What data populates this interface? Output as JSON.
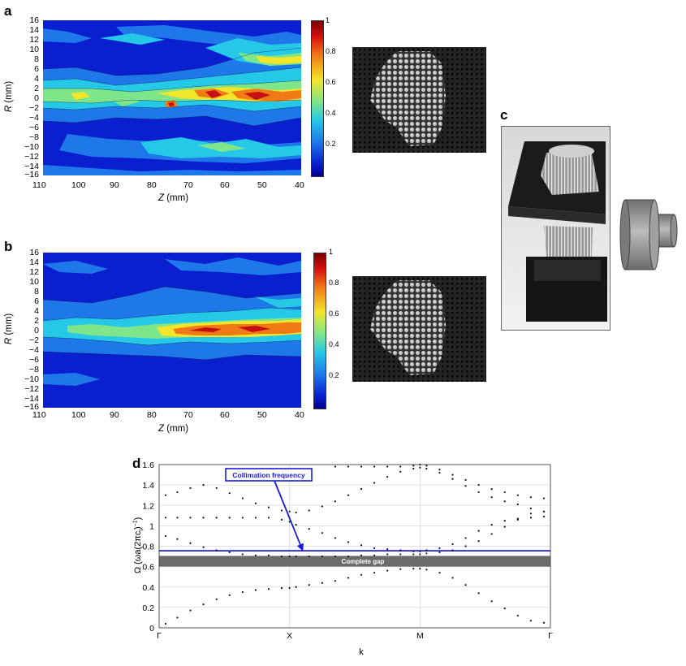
{
  "panels": {
    "a": {
      "letter": "a"
    },
    "b": {
      "letter": "b"
    },
    "c": {
      "letter": "c"
    },
    "d": {
      "letter": "d"
    }
  },
  "contour": {
    "y_ticks": [
      "16",
      "14",
      "12",
      "10",
      "8",
      "6",
      "4",
      "2",
      "0",
      "−2",
      "−4",
      "−6",
      "−8",
      "−10",
      "−12",
      "−14",
      "−16"
    ],
    "x_ticks": [
      "110",
      "100",
      "90",
      "80",
      "70",
      "60",
      "50",
      "40"
    ],
    "ylabel_var": "R",
    "ylabel_unit": " (mm)",
    "xlabel_var": "Z",
    "xlabel_unit": " (mm)",
    "colorbar_ticks": [
      "1",
      "0.8",
      "0.6",
      "0.4",
      "0.2"
    ]
  },
  "colors": {
    "low": "#0a1fd0",
    "mid_low": "#1e78ea",
    "mid": "#25c8e6",
    "mid_high": "#7ee58a",
    "high_mid": "#f2e52a",
    "high": "#f07a16",
    "max": "#c41010",
    "band_line": "#1a1adc",
    "gap_fill": "#6b6b6b"
  },
  "chart_data": {
    "type": "scatter",
    "title": "",
    "xlabel": "k",
    "ylabel": "Ω (ωa(2πcₗ)⁻¹)",
    "ylabel_parts": {
      "prefix": "Ω (ωa(2πc",
      "sub": "l",
      "mid": ")",
      "sup": "−1",
      "suffix": ")"
    },
    "ylim": [
      0,
      1.6
    ],
    "y_ticks": [
      "0",
      "0.2",
      "0.4",
      "0.6",
      "0.8",
      "1",
      "1.2",
      "1.4",
      "1.6"
    ],
    "y_tick_values": [
      0,
      0.2,
      0.4,
      0.6,
      0.8,
      1,
      1.2,
      1.4,
      1.6
    ],
    "x_ticks": [
      "Γ",
      "X",
      "M",
      "Γ"
    ],
    "x_tick_positions": [
      0,
      1,
      2,
      3
    ],
    "grid": true,
    "annotations": {
      "collimation_label": "Collimation frequency",
      "collimation_value": 0.755,
      "gap_label": "Complete gap",
      "gap_range": [
        0.6,
        0.705
      ]
    },
    "series": [
      {
        "k": [
          0.05,
          0.14,
          0.24,
          0.34,
          0.44,
          0.54,
          0.64,
          0.74,
          0.84,
          0.94,
          1.0,
          1.05,
          1.15,
          1.25,
          1.35,
          1.45,
          1.55,
          1.65,
          1.75,
          1.85,
          1.95,
          2.0,
          2.05,
          2.15,
          2.25,
          2.35,
          2.45,
          2.55,
          2.65,
          2.75,
          2.85,
          2.95
        ],
        "omega": [
          0.04,
          0.1,
          0.17,
          0.23,
          0.28,
          0.32,
          0.35,
          0.37,
          0.38,
          0.39,
          0.39,
          0.4,
          0.42,
          0.44,
          0.46,
          0.49,
          0.52,
          0.54,
          0.56,
          0.575,
          0.58,
          0.58,
          0.57,
          0.54,
          0.49,
          0.42,
          0.34,
          0.26,
          0.19,
          0.12,
          0.07,
          0.05
        ]
      },
      {
        "k": [
          0.05,
          0.14,
          0.24,
          0.34,
          0.44,
          0.54,
          0.64,
          0.74,
          0.84,
          0.94,
          1.0,
          1.05,
          1.15,
          1.25,
          1.35,
          1.45,
          1.55,
          1.65,
          1.75,
          1.85,
          1.95,
          2.0,
          2.05,
          2.15,
          2.25,
          2.35,
          2.45,
          2.55,
          2.65,
          2.75,
          2.85,
          2.95
        ],
        "omega": [
          0.9,
          0.87,
          0.83,
          0.79,
          0.76,
          0.74,
          0.72,
          0.71,
          0.71,
          0.7,
          0.7,
          0.7,
          0.7,
          0.7,
          0.7,
          0.7,
          0.71,
          0.71,
          0.72,
          0.72,
          0.72,
          0.72,
          0.73,
          0.74,
          0.76,
          0.8,
          0.85,
          0.92,
          0.99,
          1.06,
          1.12,
          1.14
        ]
      },
      {
        "k": [
          0.05,
          0.14,
          0.24,
          0.34,
          0.44,
          0.54,
          0.64,
          0.74,
          0.84,
          0.94,
          1.0,
          1.05,
          1.15,
          1.25,
          1.35,
          1.45,
          1.55,
          1.65,
          1.75,
          1.85,
          1.95,
          2.0,
          2.05,
          2.15,
          2.25,
          2.35,
          2.45,
          2.55,
          2.65,
          2.75,
          2.85,
          2.95
        ],
        "omega": [
          1.08,
          1.08,
          1.08,
          1.08,
          1.08,
          1.08,
          1.08,
          1.08,
          1.08,
          1.06,
          1.04,
          1.01,
          0.97,
          0.93,
          0.88,
          0.84,
          0.81,
          0.78,
          0.77,
          0.76,
          0.75,
          0.75,
          0.76,
          0.78,
          0.82,
          0.88,
          0.95,
          1.01,
          1.05,
          1.07,
          1.08,
          1.09
        ]
      },
      {
        "k": [
          0.05,
          0.14,
          0.24,
          0.34,
          0.44,
          0.54,
          0.64,
          0.74,
          0.84,
          0.94,
          1.0,
          1.05,
          1.15,
          1.25,
          1.35,
          1.45,
          1.55,
          1.65,
          1.75,
          1.85,
          1.95,
          2.0,
          2.05,
          2.15,
          2.25,
          2.35,
          2.45,
          2.55,
          2.65,
          2.75,
          2.85,
          2.95
        ],
        "omega": [
          1.3,
          1.33,
          1.37,
          1.4,
          1.37,
          1.32,
          1.27,
          1.22,
          1.18,
          1.15,
          1.14,
          1.13,
          1.15,
          1.19,
          1.24,
          1.3,
          1.36,
          1.42,
          1.48,
          1.53,
          1.56,
          1.57,
          1.56,
          1.52,
          1.46,
          1.39,
          1.33,
          1.28,
          1.24,
          1.21,
          1.17,
          1.14
        ]
      },
      {
        "k": [
          1.35,
          1.45,
          1.55,
          1.65,
          1.75,
          1.85,
          1.95,
          2.0,
          2.05,
          2.15,
          2.25,
          2.35,
          2.45,
          2.55,
          2.65,
          2.75,
          2.85,
          2.95
        ],
        "omega": [
          1.58,
          1.58,
          1.58,
          1.58,
          1.58,
          1.58,
          1.59,
          1.6,
          1.59,
          1.55,
          1.5,
          1.45,
          1.4,
          1.36,
          1.33,
          1.3,
          1.28,
          1.27
        ]
      }
    ]
  }
}
